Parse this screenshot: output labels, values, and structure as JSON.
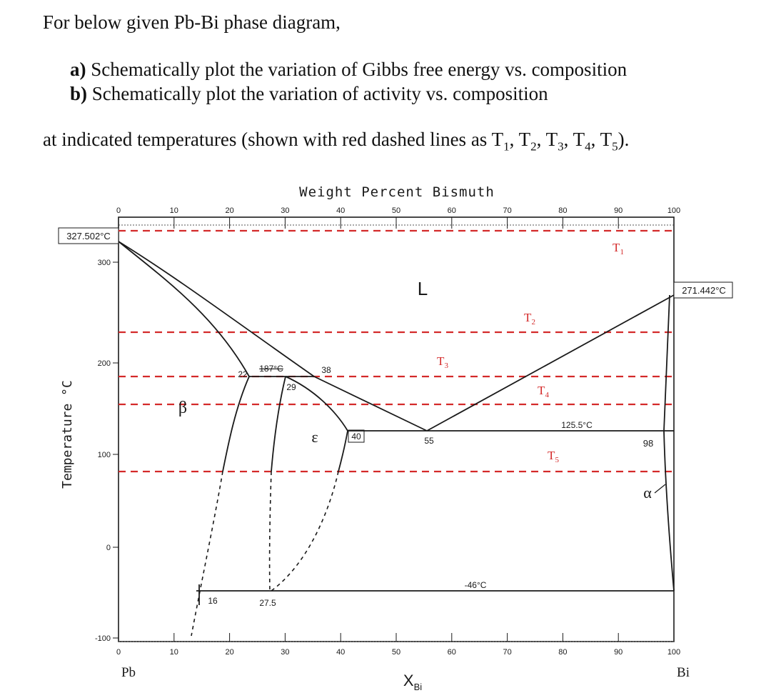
{
  "question": {
    "intro": "For below given Pb-Bi phase diagram,",
    "part_a_letter": "a)",
    "part_a_text": "Schematically plot the variation of Gibbs free energy vs. composition",
    "part_b_letter": "b)",
    "part_b_text": "Schematically plot the variation of activity vs. composition",
    "temps_prefix": "at indicated temperatures (shown with red dashed lines as T",
    "temps_sep": ", T",
    "temps_suffix": ").",
    "temp_subscripts": [
      "1",
      "2",
      "3",
      "4",
      "5"
    ]
  },
  "diagram": {
    "top_axis_title": "Weight Percent Bismuth",
    "top_ticks": [
      "0",
      "10",
      "20",
      "30",
      "40",
      "50",
      "60",
      "70",
      "80",
      "90",
      "100"
    ],
    "bottom_ticks": [
      "0",
      "10",
      "20",
      "30",
      "40",
      "50",
      "60",
      "70",
      "80",
      "90",
      "100"
    ],
    "y_axis_title": "Temperature °C",
    "y_ticks": [
      "300",
      "200",
      "100",
      "0",
      "-100"
    ],
    "pb_melting_label": "327.502°C",
    "bi_melting_label": "271.442°C",
    "left_element": "Pb",
    "right_element": "Bi",
    "x_axis_title": "X",
    "x_axis_sub": "Bi",
    "phase_L": "L",
    "phase_beta": "β",
    "phase_epsilon": "ε",
    "phase_alpha": "α",
    "peritectic_label": "187°C",
    "label_22": "22",
    "label_29": "29",
    "label_38": "38",
    "label_40": "40",
    "label_55": "55",
    "eutectic_label": "125.5°C",
    "label_98": "98",
    "low_temp_label": "-46°C",
    "label_16": "16",
    "label_27_5": "27.5",
    "temp_lines": [
      {
        "name": "T",
        "sub": "1"
      },
      {
        "name": "T",
        "sub": "2"
      },
      {
        "name": "T",
        "sub": "3"
      },
      {
        "name": "T",
        "sub": "4"
      },
      {
        "name": "T",
        "sub": "5"
      }
    ],
    "colors": {
      "red_dashed": "#d42a2a",
      "line": "#1a1a1a",
      "grid_dashed": "#333333"
    }
  }
}
